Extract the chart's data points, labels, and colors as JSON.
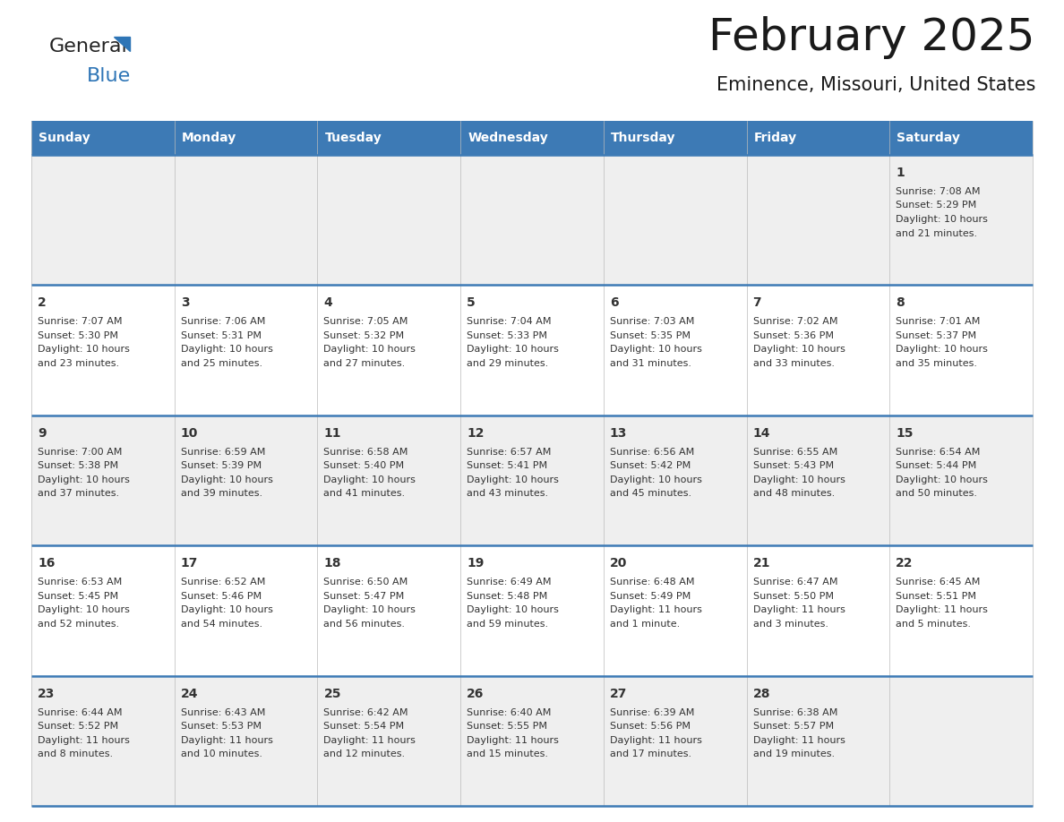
{
  "title": "February 2025",
  "subtitle": "Eminence, Missouri, United States",
  "header_bg": "#3D7AB5",
  "header_text": "#FFFFFF",
  "row_bg_even": "#EFEFEF",
  "row_bg_odd": "#FFFFFF",
  "separator_color": "#3D7AB5",
  "grid_color": "#BBBBBB",
  "text_color": "#333333",
  "day_headers": [
    "Sunday",
    "Monday",
    "Tuesday",
    "Wednesday",
    "Thursday",
    "Friday",
    "Saturday"
  ],
  "days": [
    {
      "day": 1,
      "col": 6,
      "row": 0,
      "sunrise": "7:08 AM",
      "sunset": "5:29 PM",
      "daylight": "10 hours",
      "daylight2": "and 21 minutes."
    },
    {
      "day": 2,
      "col": 0,
      "row": 1,
      "sunrise": "7:07 AM",
      "sunset": "5:30 PM",
      "daylight": "10 hours",
      "daylight2": "and 23 minutes."
    },
    {
      "day": 3,
      "col": 1,
      "row": 1,
      "sunrise": "7:06 AM",
      "sunset": "5:31 PM",
      "daylight": "10 hours",
      "daylight2": "and 25 minutes."
    },
    {
      "day": 4,
      "col": 2,
      "row": 1,
      "sunrise": "7:05 AM",
      "sunset": "5:32 PM",
      "daylight": "10 hours",
      "daylight2": "and 27 minutes."
    },
    {
      "day": 5,
      "col": 3,
      "row": 1,
      "sunrise": "7:04 AM",
      "sunset": "5:33 PM",
      "daylight": "10 hours",
      "daylight2": "and 29 minutes."
    },
    {
      "day": 6,
      "col": 4,
      "row": 1,
      "sunrise": "7:03 AM",
      "sunset": "5:35 PM",
      "daylight": "10 hours",
      "daylight2": "and 31 minutes."
    },
    {
      "day": 7,
      "col": 5,
      "row": 1,
      "sunrise": "7:02 AM",
      "sunset": "5:36 PM",
      "daylight": "10 hours",
      "daylight2": "and 33 minutes."
    },
    {
      "day": 8,
      "col": 6,
      "row": 1,
      "sunrise": "7:01 AM",
      "sunset": "5:37 PM",
      "daylight": "10 hours",
      "daylight2": "and 35 minutes."
    },
    {
      "day": 9,
      "col": 0,
      "row": 2,
      "sunrise": "7:00 AM",
      "sunset": "5:38 PM",
      "daylight": "10 hours",
      "daylight2": "and 37 minutes."
    },
    {
      "day": 10,
      "col": 1,
      "row": 2,
      "sunrise": "6:59 AM",
      "sunset": "5:39 PM",
      "daylight": "10 hours",
      "daylight2": "and 39 minutes."
    },
    {
      "day": 11,
      "col": 2,
      "row": 2,
      "sunrise": "6:58 AM",
      "sunset": "5:40 PM",
      "daylight": "10 hours",
      "daylight2": "and 41 minutes."
    },
    {
      "day": 12,
      "col": 3,
      "row": 2,
      "sunrise": "6:57 AM",
      "sunset": "5:41 PM",
      "daylight": "10 hours",
      "daylight2": "and 43 minutes."
    },
    {
      "day": 13,
      "col": 4,
      "row": 2,
      "sunrise": "6:56 AM",
      "sunset": "5:42 PM",
      "daylight": "10 hours",
      "daylight2": "and 45 minutes."
    },
    {
      "day": 14,
      "col": 5,
      "row": 2,
      "sunrise": "6:55 AM",
      "sunset": "5:43 PM",
      "daylight": "10 hours",
      "daylight2": "and 48 minutes."
    },
    {
      "day": 15,
      "col": 6,
      "row": 2,
      "sunrise": "6:54 AM",
      "sunset": "5:44 PM",
      "daylight": "10 hours",
      "daylight2": "and 50 minutes."
    },
    {
      "day": 16,
      "col": 0,
      "row": 3,
      "sunrise": "6:53 AM",
      "sunset": "5:45 PM",
      "daylight": "10 hours",
      "daylight2": "and 52 minutes."
    },
    {
      "day": 17,
      "col": 1,
      "row": 3,
      "sunrise": "6:52 AM",
      "sunset": "5:46 PM",
      "daylight": "10 hours",
      "daylight2": "and 54 minutes."
    },
    {
      "day": 18,
      "col": 2,
      "row": 3,
      "sunrise": "6:50 AM",
      "sunset": "5:47 PM",
      "daylight": "10 hours",
      "daylight2": "and 56 minutes."
    },
    {
      "day": 19,
      "col": 3,
      "row": 3,
      "sunrise": "6:49 AM",
      "sunset": "5:48 PM",
      "daylight": "10 hours",
      "daylight2": "and 59 minutes."
    },
    {
      "day": 20,
      "col": 4,
      "row": 3,
      "sunrise": "6:48 AM",
      "sunset": "5:49 PM",
      "daylight": "11 hours",
      "daylight2": "and 1 minute."
    },
    {
      "day": 21,
      "col": 5,
      "row": 3,
      "sunrise": "6:47 AM",
      "sunset": "5:50 PM",
      "daylight": "11 hours",
      "daylight2": "and 3 minutes."
    },
    {
      "day": 22,
      "col": 6,
      "row": 3,
      "sunrise": "6:45 AM",
      "sunset": "5:51 PM",
      "daylight": "11 hours",
      "daylight2": "and 5 minutes."
    },
    {
      "day": 23,
      "col": 0,
      "row": 4,
      "sunrise": "6:44 AM",
      "sunset": "5:52 PM",
      "daylight": "11 hours",
      "daylight2": "and 8 minutes."
    },
    {
      "day": 24,
      "col": 1,
      "row": 4,
      "sunrise": "6:43 AM",
      "sunset": "5:53 PM",
      "daylight": "11 hours",
      "daylight2": "and 10 minutes."
    },
    {
      "day": 25,
      "col": 2,
      "row": 4,
      "sunrise": "6:42 AM",
      "sunset": "5:54 PM",
      "daylight": "11 hours",
      "daylight2": "and 12 minutes."
    },
    {
      "day": 26,
      "col": 3,
      "row": 4,
      "sunrise": "6:40 AM",
      "sunset": "5:55 PM",
      "daylight": "11 hours",
      "daylight2": "and 15 minutes."
    },
    {
      "day": 27,
      "col": 4,
      "row": 4,
      "sunrise": "6:39 AM",
      "sunset": "5:56 PM",
      "daylight": "11 hours",
      "daylight2": "and 17 minutes."
    },
    {
      "day": 28,
      "col": 5,
      "row": 4,
      "sunrise": "6:38 AM",
      "sunset": "5:57 PM",
      "daylight": "11 hours",
      "daylight2": "and 19 minutes."
    }
  ],
  "fig_width": 11.88,
  "fig_height": 9.18,
  "logo_general_color": "#222222",
  "logo_blue_color": "#2E75B6",
  "title_fontsize": 36,
  "subtitle_fontsize": 15,
  "header_fontsize": 10,
  "day_num_fontsize": 10,
  "cell_text_fontsize": 8
}
